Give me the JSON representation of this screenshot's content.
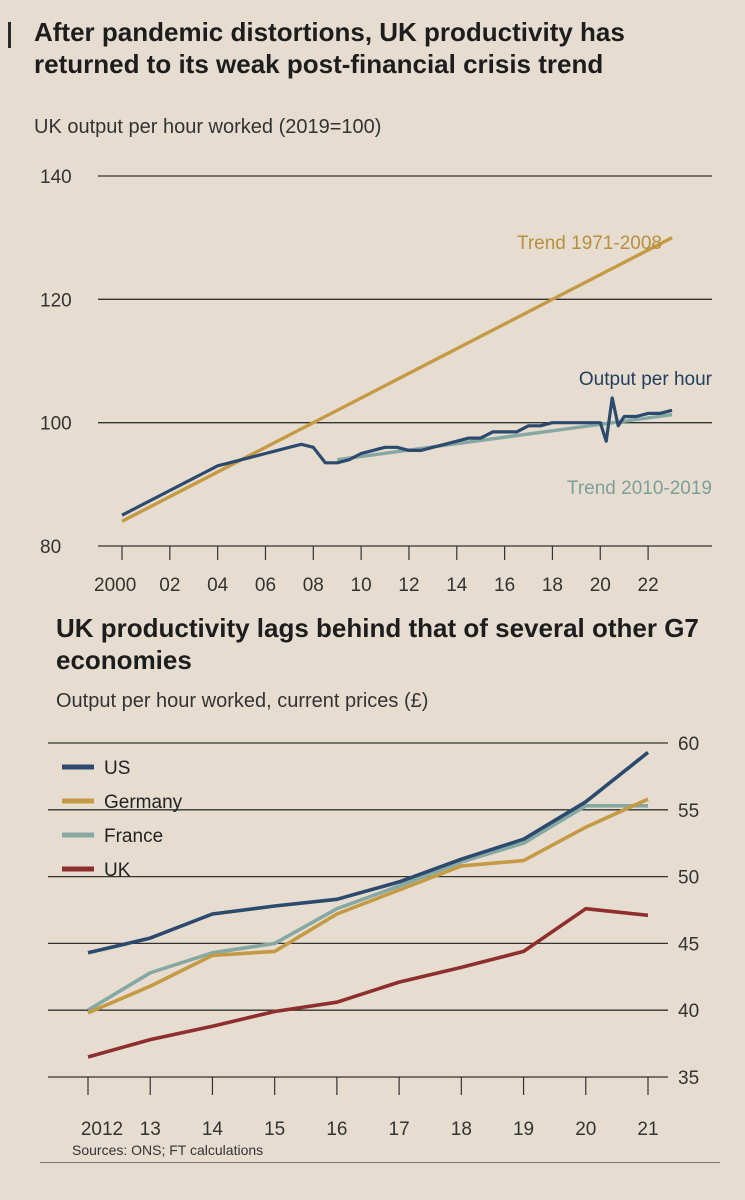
{
  "chart_data": [
    {
      "type": "line",
      "title": "After pandemic distortions, UK productivity has returned to its weak post-financial crisis trend",
      "subtitle": "UK output per hour worked (2019=100)",
      "ylim": [
        80,
        140
      ],
      "yticks": [
        "140",
        "120",
        "100",
        "80"
      ],
      "xlim": [
        2000,
        2023
      ],
      "xticks": [
        "2000",
        "02",
        "04",
        "06",
        "08",
        "10",
        "12",
        "14",
        "16",
        "18",
        "20",
        "22"
      ],
      "grid": true,
      "series": [
        {
          "name": "Trend 1971-2008",
          "color": "#c49a45",
          "x": [
            2000,
            2023
          ],
          "y": [
            84,
            130
          ]
        },
        {
          "name": "Trend 2010-2019",
          "color": "#86a8a3",
          "x": [
            2009,
            2023
          ],
          "y": [
            94,
            101.3
          ]
        },
        {
          "name": "Output per hour",
          "color": "#2c4a6e",
          "x": [
            2000,
            2000.5,
            2001,
            2001.5,
            2002,
            2002.5,
            2003,
            2003.5,
            2004,
            2004.5,
            2005,
            2005.5,
            2006,
            2006.5,
            2007,
            2007.5,
            2008,
            2008.5,
            2009,
            2009.5,
            2010,
            2010.5,
            2011,
            2011.5,
            2012,
            2012.5,
            2013,
            2013.5,
            2014,
            2014.5,
            2015,
            2015.5,
            2016,
            2016.5,
            2017,
            2017.5,
            2018,
            2018.5,
            2019,
            2019.5,
            2020,
            2020.25,
            2020.5,
            2020.75,
            2021,
            2021.5,
            2022,
            2022.5,
            2023
          ],
          "y": [
            85,
            86,
            87,
            88,
            89,
            90,
            91,
            92,
            93,
            93.5,
            94,
            94.5,
            95,
            95.5,
            96,
            96.5,
            96,
            93.5,
            93.5,
            94,
            95,
            95.5,
            96,
            96,
            95.5,
            95.5,
            96,
            96.5,
            97,
            97.5,
            97.5,
            98.5,
            98.5,
            98.5,
            99.5,
            99.5,
            100,
            100,
            100,
            100,
            100,
            97,
            104,
            99.5,
            101,
            101,
            101.5,
            101.5,
            102
          ]
        }
      ]
    },
    {
      "type": "line",
      "title": "UK productivity lags behind that of several other G7 economies",
      "subtitle": "Output per hour worked, current prices (£)",
      "ylim": [
        35,
        60
      ],
      "yticks": [
        "60",
        "55",
        "50",
        "45",
        "40",
        "35"
      ],
      "xticks": [
        "2012",
        "13",
        "14",
        "15",
        "16",
        "17",
        "18",
        "19",
        "20",
        "21"
      ],
      "x": [
        2012,
        2013,
        2014,
        2015,
        2016,
        2017,
        2018,
        2019,
        2020,
        2021
      ],
      "grid": true,
      "legend": "top-left",
      "series": [
        {
          "name": "US",
          "color": "#2c4a6e",
          "values": [
            44.3,
            45.4,
            47.2,
            47.8,
            48.3,
            49.6,
            51.3,
            52.8,
            55.6,
            59.3
          ]
        },
        {
          "name": "Germany",
          "color": "#c49a45",
          "values": [
            39.8,
            41.8,
            44.1,
            44.4,
            47.2,
            49.0,
            50.8,
            51.2,
            53.7,
            55.8
          ]
        },
        {
          "name": "France",
          "color": "#86a8a3",
          "values": [
            40.0,
            42.8,
            44.3,
            45.0,
            47.6,
            49.3,
            51.1,
            52.5,
            55.3,
            55.3
          ]
        },
        {
          "name": "UK",
          "color": "#8e2f2e",
          "values": [
            36.5,
            37.8,
            38.8,
            39.9,
            40.6,
            42.1,
            43.2,
            44.4,
            47.6,
            47.1
          ]
        }
      ]
    }
  ],
  "footer": {
    "sources": "Sources: ONS; FT calculations"
  }
}
